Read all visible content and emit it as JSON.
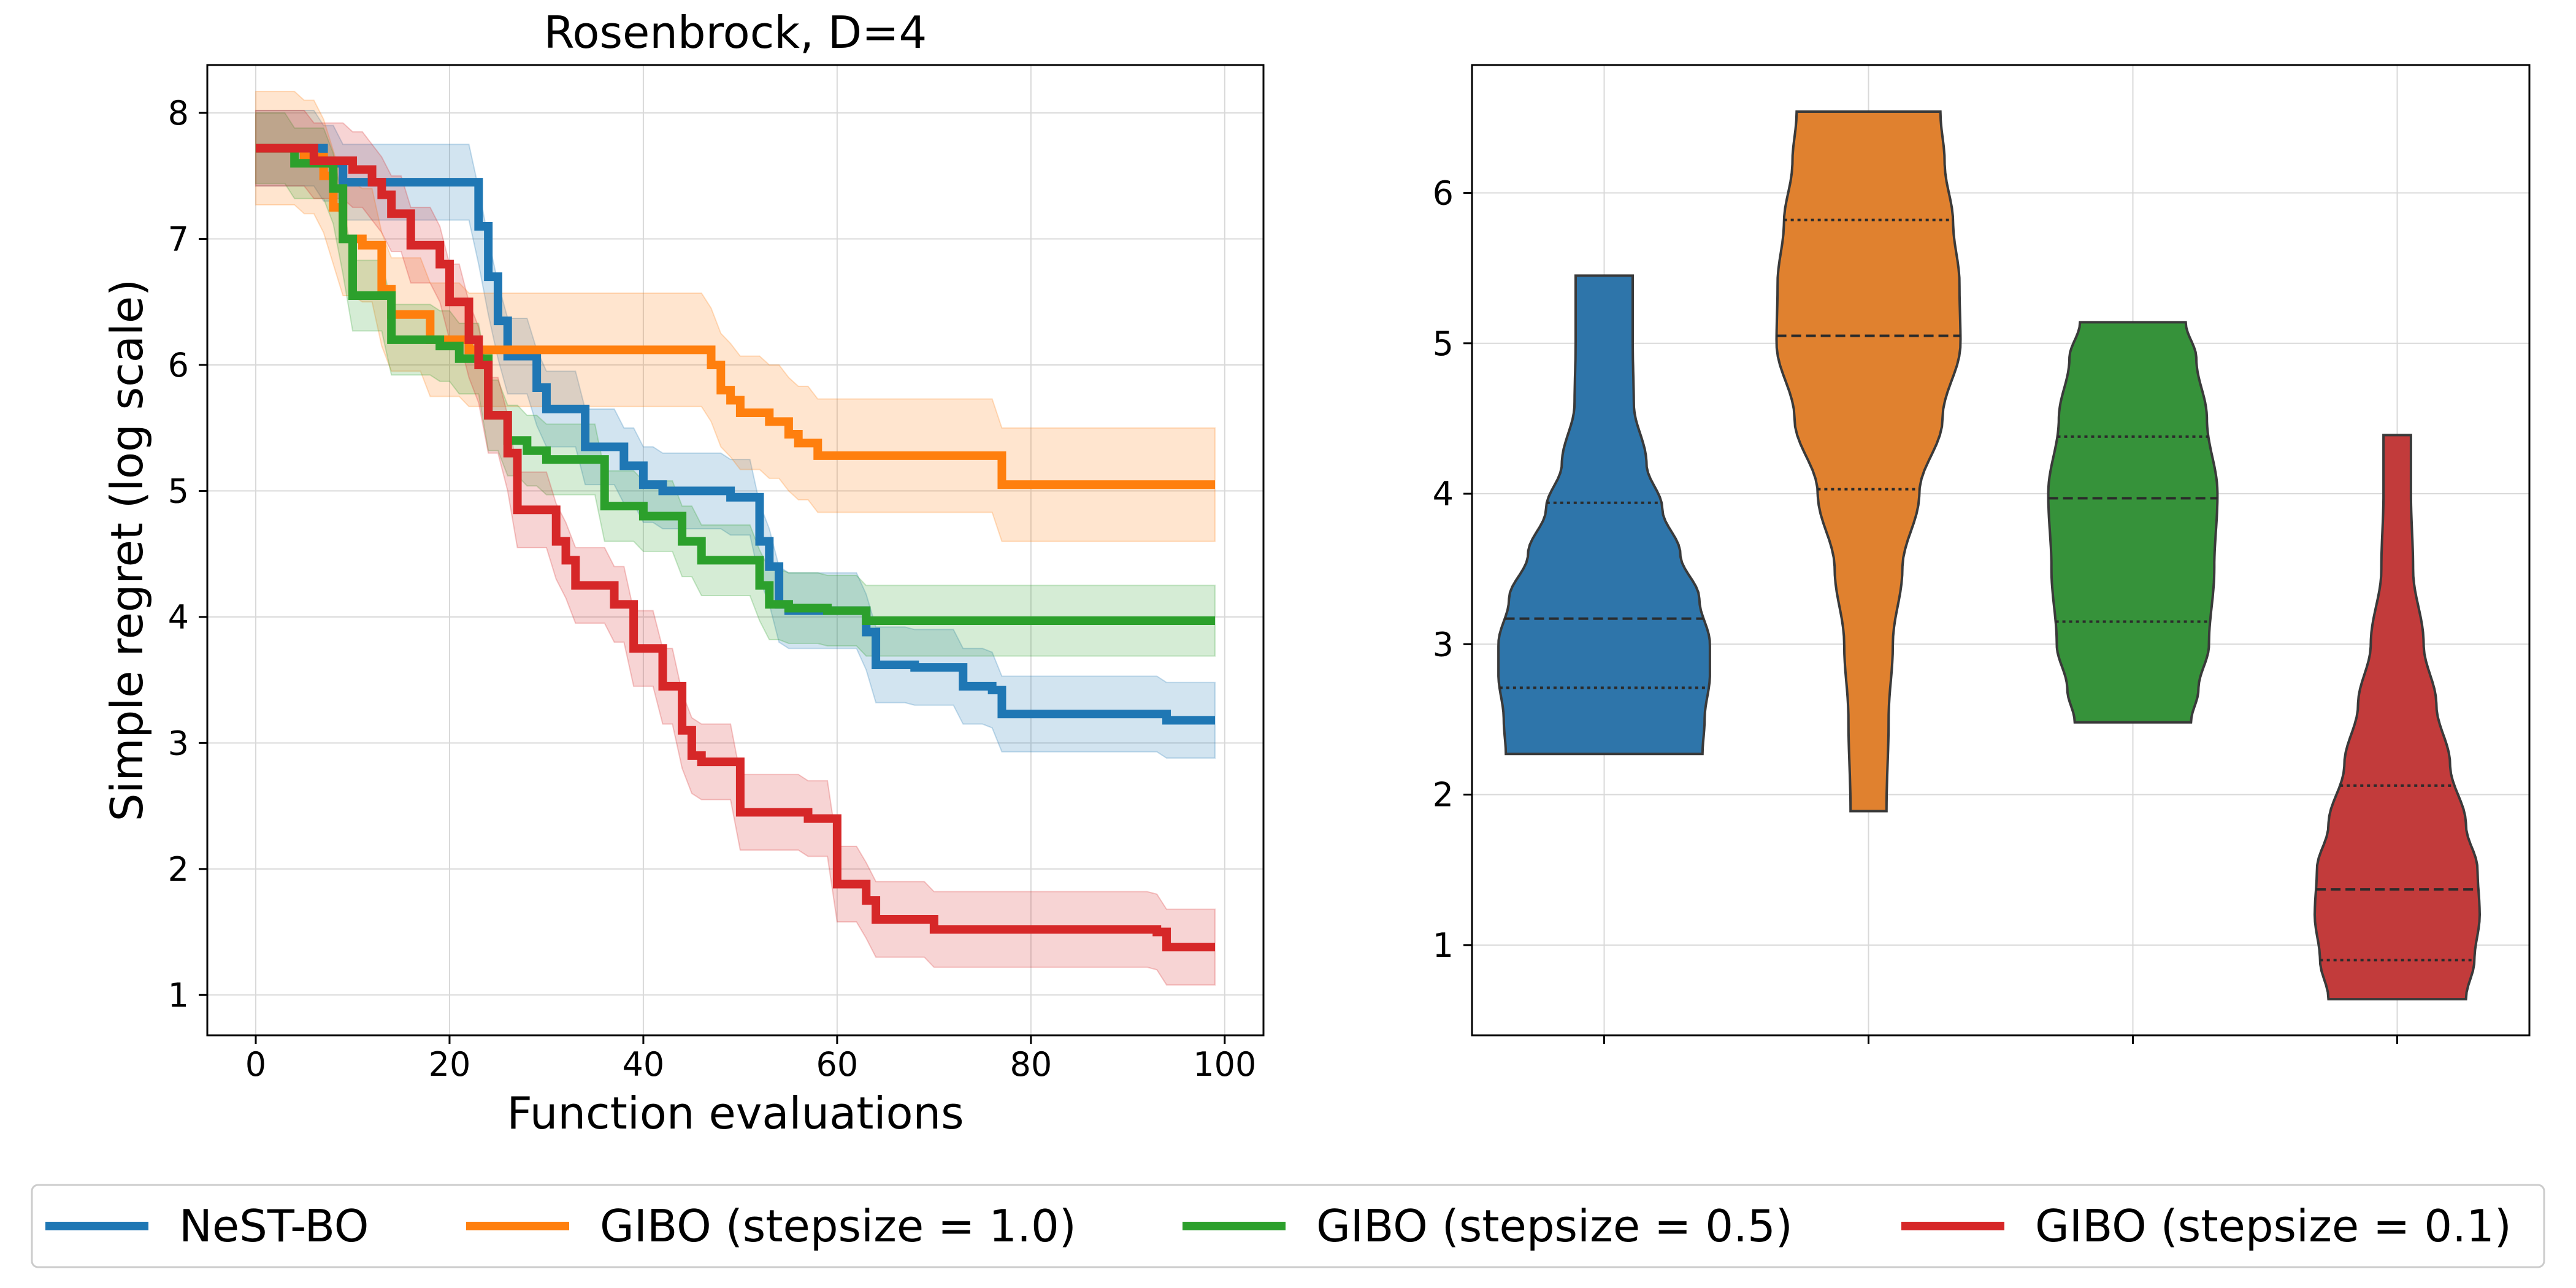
{
  "colors": {
    "blue": "#1f77b4",
    "orange": "#ff7f0e",
    "green": "#2ca02c",
    "red": "#d62728",
    "grid": "#d9d9d9",
    "axis": "#000000"
  },
  "legend": {
    "placement": "bottom-center",
    "entries": [
      {
        "label": "NeST-BO",
        "color": "#1f77b4"
      },
      {
        "label": "GIBO (stepsize = 1.0)",
        "color": "#ff7f0e"
      },
      {
        "label": "GIBO (stepsize = 0.5)",
        "color": "#2ca02c"
      },
      {
        "label": "GIBO (stepsize = 0.1)",
        "color": "#d62728"
      }
    ]
  },
  "chart_data": [
    {
      "type": "line",
      "title": "Rosenbrock, D=4",
      "xlabel": "Function evaluations",
      "ylabel": "Simple regret (log scale)",
      "xlim": [
        -5,
        104
      ],
      "ylim": [
        0.68,
        8.38
      ],
      "xticks": [
        0,
        20,
        40,
        60,
        80,
        100
      ],
      "yticks": [
        1,
        2,
        3,
        4,
        5,
        6,
        7,
        8
      ],
      "grid": true,
      "series": [
        {
          "name": "NeST-BO",
          "color": "#1f77b4",
          "steps": [
            [
              0,
              7.72
            ],
            [
              7,
              7.6
            ],
            [
              9,
              7.45
            ],
            [
              22,
              7.45
            ],
            [
              23,
              7.1
            ],
            [
              24,
              6.7
            ],
            [
              25,
              6.35
            ],
            [
              26,
              6.07
            ],
            [
              29,
              5.82
            ],
            [
              30,
              5.65
            ],
            [
              34,
              5.35
            ],
            [
              38,
              5.2
            ],
            [
              40,
              5.05
            ],
            [
              42,
              5.0
            ],
            [
              49,
              4.95
            ],
            [
              52,
              4.6
            ],
            [
              53,
              4.4
            ],
            [
              54,
              4.1
            ],
            [
              55,
              4.05
            ],
            [
              63,
              3.88
            ],
            [
              64,
              3.62
            ],
            [
              68,
              3.6
            ],
            [
              73,
              3.45
            ],
            [
              76,
              3.42
            ],
            [
              77,
              3.23
            ],
            [
              94,
              3.18
            ],
            [
              99,
              3.18
            ]
          ],
          "band": 0.3
        },
        {
          "name": "GIBO (stepsize = 1.0)",
          "color": "#ff7f0e",
          "steps": [
            [
              0,
              7.72
            ],
            [
              5,
              7.65
            ],
            [
              7,
              7.5
            ],
            [
              8,
              7.25
            ],
            [
              9,
              7.0
            ],
            [
              11,
              6.95
            ],
            [
              13,
              6.6
            ],
            [
              14,
              6.4
            ],
            [
              18,
              6.2
            ],
            [
              22,
              6.12
            ],
            [
              47,
              6.0
            ],
            [
              48,
              5.8
            ],
            [
              49,
              5.72
            ],
            [
              50,
              5.62
            ],
            [
              53,
              5.55
            ],
            [
              55,
              5.45
            ],
            [
              56,
              5.38
            ],
            [
              58,
              5.28
            ],
            [
              77,
              5.05
            ],
            [
              99,
              5.05
            ]
          ],
          "band": 0.45
        },
        {
          "name": "GIBO (stepsize = 0.5)",
          "color": "#2ca02c",
          "steps": [
            [
              0,
              7.72
            ],
            [
              4,
              7.6
            ],
            [
              8,
              7.4
            ],
            [
              9,
              7.0
            ],
            [
              10,
              6.55
            ],
            [
              14,
              6.2
            ],
            [
              19,
              6.15
            ],
            [
              21,
              6.05
            ],
            [
              24,
              5.6
            ],
            [
              26,
              5.4
            ],
            [
              28,
              5.32
            ],
            [
              30,
              5.25
            ],
            [
              36,
              4.88
            ],
            [
              40,
              4.8
            ],
            [
              44,
              4.6
            ],
            [
              46,
              4.45
            ],
            [
              52,
              4.25
            ],
            [
              53,
              4.1
            ],
            [
              55,
              4.07
            ],
            [
              59,
              4.05
            ],
            [
              63,
              3.97
            ],
            [
              99,
              3.97
            ]
          ],
          "band": 0.28
        },
        {
          "name": "GIBO (stepsize = 0.1)",
          "color": "#d62728",
          "steps": [
            [
              0,
              7.72
            ],
            [
              6,
              7.62
            ],
            [
              10,
              7.55
            ],
            [
              12,
              7.45
            ],
            [
              13,
              7.35
            ],
            [
              14,
              7.2
            ],
            [
              16,
              6.95
            ],
            [
              19,
              6.8
            ],
            [
              20,
              6.5
            ],
            [
              22,
              6.2
            ],
            [
              23,
              6.0
            ],
            [
              24,
              5.6
            ],
            [
              26,
              5.3
            ],
            [
              27,
              4.85
            ],
            [
              31,
              4.6
            ],
            [
              32,
              4.45
            ],
            [
              33,
              4.25
            ],
            [
              37,
              4.1
            ],
            [
              39,
              3.75
            ],
            [
              42,
              3.45
            ],
            [
              44,
              3.1
            ],
            [
              45,
              2.9
            ],
            [
              46,
              2.85
            ],
            [
              50,
              2.45
            ],
            [
              57,
              2.4
            ],
            [
              60,
              1.88
            ],
            [
              63,
              1.75
            ],
            [
              64,
              1.6
            ],
            [
              70,
              1.52
            ],
            [
              93,
              1.5
            ],
            [
              94,
              1.38
            ],
            [
              99,
              1.38
            ]
          ],
          "band": 0.3
        }
      ]
    },
    {
      "type": "violin",
      "title": "",
      "xlabel": "",
      "ylabel": "",
      "ylim": [
        0.4,
        6.85
      ],
      "yticks": [
        1,
        2,
        3,
        4,
        5,
        6
      ],
      "grid": true,
      "series": [
        {
          "name": "NeST-BO",
          "color": "#2e75aa",
          "min": 2.27,
          "max": 5.45,
          "q1": 2.71,
          "median": 3.17,
          "q3": 3.94,
          "profile": [
            [
              2.27,
              0.93
            ],
            [
              2.5,
              0.95
            ],
            [
              2.8,
              1.0
            ],
            [
              3.0,
              1.0
            ],
            [
              3.3,
              0.9
            ],
            [
              3.6,
              0.72
            ],
            [
              3.9,
              0.55
            ],
            [
              4.2,
              0.4
            ],
            [
              4.6,
              0.28
            ],
            [
              5.0,
              0.27
            ],
            [
              5.45,
              0.27
            ]
          ]
        },
        {
          "name": "GIBO (stepsize = 1.0)",
          "color": "#e0812f",
          "min": 1.89,
          "max": 6.54,
          "q1": 4.03,
          "median": 5.05,
          "q3": 5.82,
          "profile": [
            [
              1.89,
              0.17
            ],
            [
              2.5,
              0.19
            ],
            [
              3.0,
              0.23
            ],
            [
              3.5,
              0.32
            ],
            [
              4.0,
              0.48
            ],
            [
              4.5,
              0.7
            ],
            [
              5.0,
              0.87
            ],
            [
              5.4,
              0.86
            ],
            [
              5.8,
              0.8
            ],
            [
              6.2,
              0.72
            ],
            [
              6.54,
              0.68
            ]
          ]
        },
        {
          "name": "GIBO (stepsize = 0.5)",
          "color": "#36923a",
          "min": 2.48,
          "max": 5.14,
          "q1": 3.15,
          "median": 3.97,
          "q3": 4.38,
          "profile": [
            [
              2.48,
              0.55
            ],
            [
              2.7,
              0.62
            ],
            [
              3.0,
              0.72
            ],
            [
              3.5,
              0.77
            ],
            [
              4.0,
              0.8
            ],
            [
              4.5,
              0.7
            ],
            [
              4.9,
              0.6
            ],
            [
              5.14,
              0.5
            ]
          ]
        },
        {
          "name": "GIBO (stepsize = 0.1)",
          "color": "#c23b3b",
          "min": 0.64,
          "max": 4.39,
          "q1": 0.9,
          "median": 1.37,
          "q3": 2.06,
          "profile": [
            [
              0.64,
              0.65
            ],
            [
              0.9,
              0.73
            ],
            [
              1.2,
              0.78
            ],
            [
              1.5,
              0.76
            ],
            [
              1.8,
              0.65
            ],
            [
              2.2,
              0.5
            ],
            [
              2.6,
              0.37
            ],
            [
              3.0,
              0.25
            ],
            [
              3.5,
              0.15
            ],
            [
              4.0,
              0.13
            ],
            [
              4.39,
              0.13
            ]
          ]
        }
      ]
    }
  ]
}
